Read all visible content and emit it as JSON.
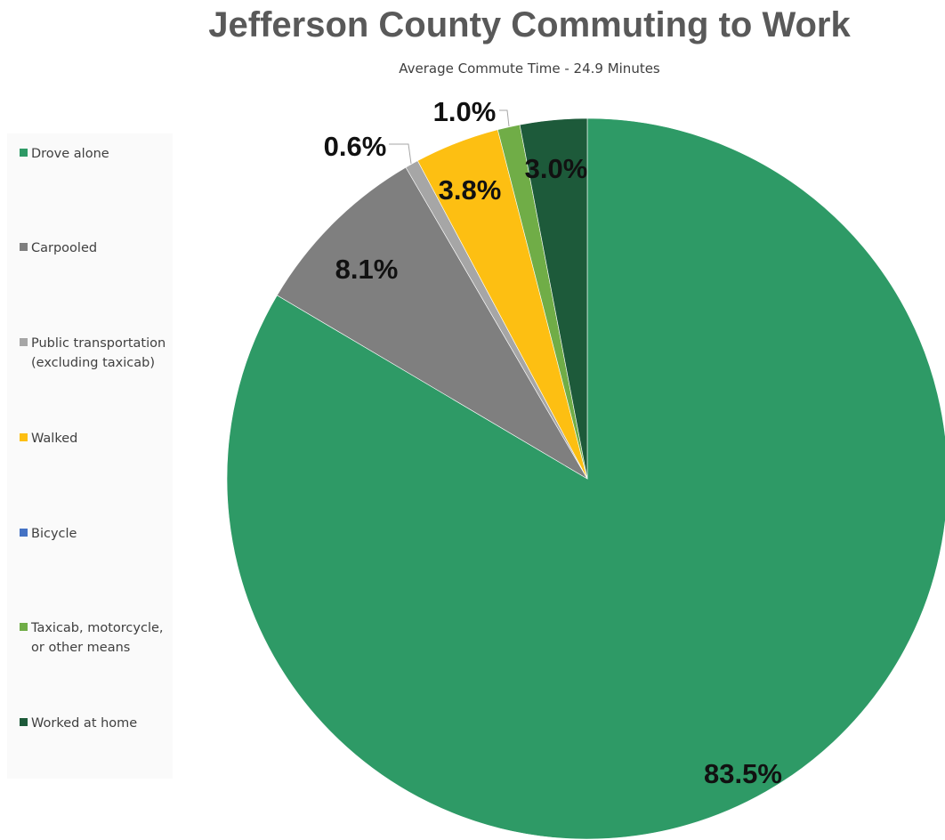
{
  "chart_data": {
    "type": "pie",
    "title": "Jefferson County Commuting to Work",
    "subtitle": "Average Commute Time - 24.9 Minutes",
    "legend_position": "left",
    "start_angle_deg": 0,
    "direction": "clockwise",
    "slices": [
      {
        "name": "Drove alone",
        "value": 83.5,
        "label": "83.5%",
        "color": "#2e9a66"
      },
      {
        "name": "Carpooled",
        "value": 8.1,
        "label": "8.1%",
        "color": "#7f7f7f"
      },
      {
        "name": "Public transportation (excluding taxicab)",
        "value": 0.6,
        "label": "0.6%",
        "color": "#a6a6a6"
      },
      {
        "name": "Walked",
        "value": 3.8,
        "label": "3.8%",
        "color": "#fdbf12"
      },
      {
        "name": "Bicycle",
        "value": 0.0,
        "label": "",
        "color": "#4472c4"
      },
      {
        "name": "Taxicab, motorcycle, or other means",
        "value": 1.0,
        "label": "1.0%",
        "color": "#70ad47"
      },
      {
        "name": "Worked at home",
        "value": 3.0,
        "label": "3.0%",
        "color": "#1d5a3a"
      }
    ]
  },
  "legend": [
    {
      "lines": [
        "Drove alone"
      ]
    },
    {
      "lines": [
        "Carpooled"
      ]
    },
    {
      "lines": [
        "Public transportation",
        "(excluding taxicab)"
      ]
    },
    {
      "lines": [
        "Walked"
      ]
    },
    {
      "lines": [
        "Bicycle"
      ]
    },
    {
      "lines": [
        "Taxicab, motorcycle,",
        "or other means"
      ]
    },
    {
      "lines": [
        "Worked at home"
      ]
    }
  ]
}
